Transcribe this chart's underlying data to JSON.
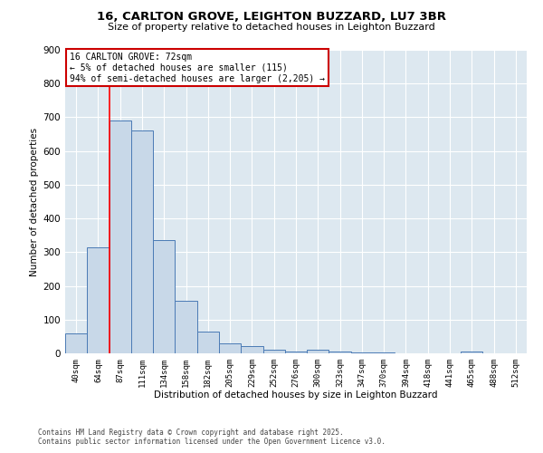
{
  "title_line1": "16, CARLTON GROVE, LEIGHTON BUZZARD, LU7 3BR",
  "title_line2": "Size of property relative to detached houses in Leighton Buzzard",
  "xlabel": "Distribution of detached houses by size in Leighton Buzzard",
  "ylabel": "Number of detached properties",
  "bar_labels": [
    "40sqm",
    "64sqm",
    "87sqm",
    "111sqm",
    "134sqm",
    "158sqm",
    "182sqm",
    "205sqm",
    "229sqm",
    "252sqm",
    "276sqm",
    "300sqm",
    "323sqm",
    "347sqm",
    "370sqm",
    "394sqm",
    "418sqm",
    "441sqm",
    "465sqm",
    "488sqm",
    "512sqm"
  ],
  "bar_values": [
    60,
    315,
    690,
    660,
    335,
    155,
    65,
    30,
    22,
    10,
    5,
    10,
    5,
    2,
    2,
    0,
    0,
    0,
    5,
    0,
    0
  ],
  "bar_color": "#c8d8e8",
  "bar_edge_color": "#4a7ab5",
  "annotation_title": "16 CARLTON GROVE: 72sqm",
  "annotation_line2": "← 5% of detached houses are smaller (115)",
  "annotation_line3": "94% of semi-detached houses are larger (2,205) →",
  "annotation_box_color": "#ffffff",
  "annotation_box_edge": "#cc0000",
  "red_line_x": 1.5,
  "ylim": [
    0,
    900
  ],
  "yticks": [
    0,
    100,
    200,
    300,
    400,
    500,
    600,
    700,
    800,
    900
  ],
  "fig_bg_color": "#ffffff",
  "plot_bg_color": "#dde8f0",
  "footer_line1": "Contains HM Land Registry data © Crown copyright and database right 2025.",
  "footer_line2": "Contains public sector information licensed under the Open Government Licence v3.0."
}
